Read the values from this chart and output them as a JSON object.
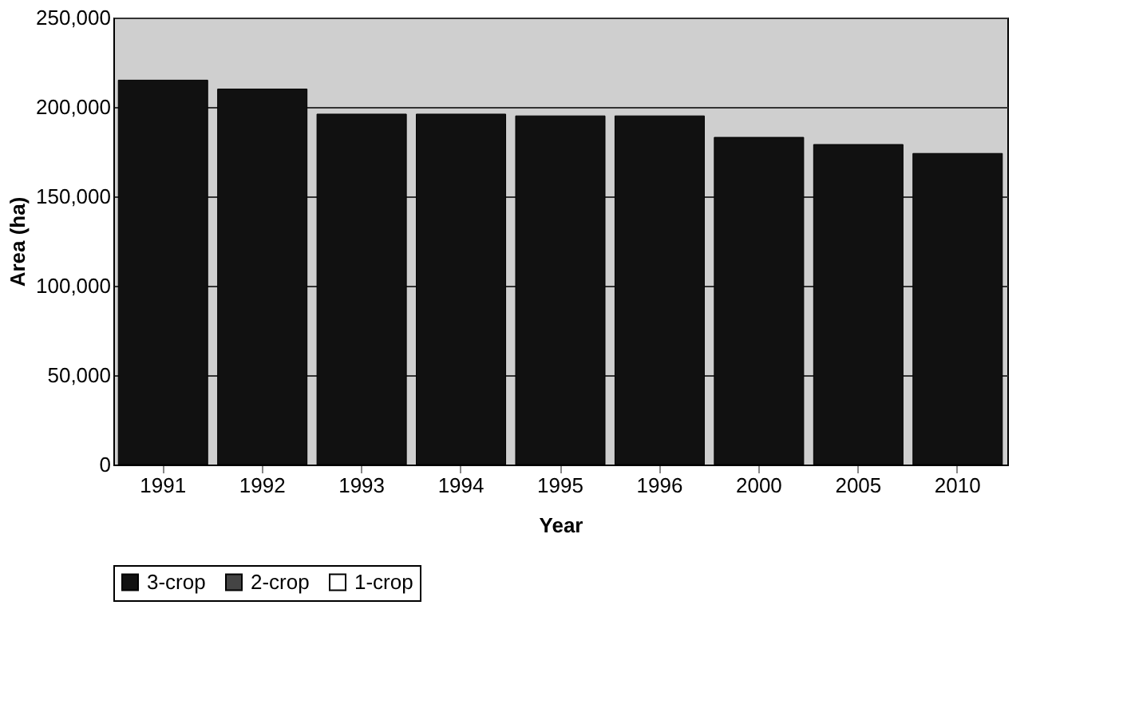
{
  "chart_data": {
    "type": "bar",
    "xlabel": "Year",
    "ylabel": "Area (ha)",
    "categories": [
      "1991",
      "1992",
      "1993",
      "1994",
      "1995",
      "1996",
      "2000",
      "2005",
      "2010"
    ],
    "series": [
      {
        "name": "3-crop",
        "color": "#111111",
        "values": [
          215000,
          210000,
          196000,
          196000,
          195000,
          195000,
          183000,
          179000,
          174000
        ]
      },
      {
        "name": "2-crop",
        "color": "#444444",
        "values": [
          null,
          null,
          null,
          null,
          null,
          null,
          null,
          null,
          null
        ]
      },
      {
        "name": "1-crop",
        "color": "#ffffff",
        "values": [
          null,
          null,
          null,
          null,
          null,
          null,
          null,
          null,
          null
        ]
      }
    ],
    "ylim": [
      0,
      250000
    ],
    "yticks": [
      {
        "value": 0,
        "label": "0"
      },
      {
        "value": 50000,
        "label": "50,000"
      },
      {
        "value": 100000,
        "label": "100,000"
      },
      {
        "value": 150000,
        "label": "150,000"
      },
      {
        "value": 200000,
        "label": "200,000"
      },
      {
        "value": 250000,
        "label": "250,000"
      }
    ],
    "grid": "y",
    "legend": "bottom"
  }
}
